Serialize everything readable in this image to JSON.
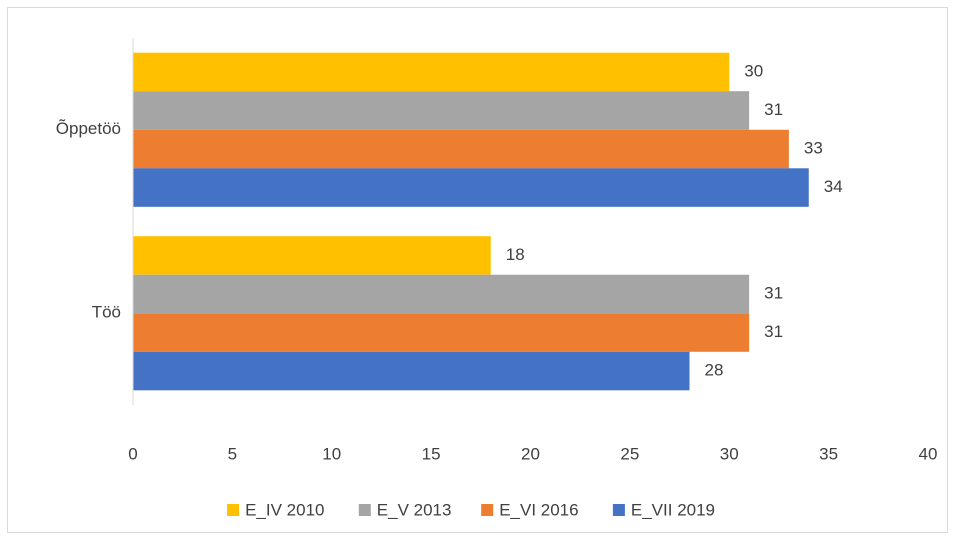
{
  "chart_data": {
    "type": "hbar",
    "categories": [
      "Õppetöö",
      "Töö"
    ],
    "series": [
      {
        "name": "E_IV 2010",
        "color": "#ffc000",
        "values": [
          30,
          18
        ]
      },
      {
        "name": "E_V 2013",
        "color": "#a5a5a5",
        "values": [
          31,
          31
        ]
      },
      {
        "name": "E_VI 2016",
        "color": "#ed7d31",
        "values": [
          33,
          31
        ]
      },
      {
        "name": "E_VII 2019",
        "color": "#4472c4",
        "values": [
          34,
          28
        ]
      }
    ],
    "xlim": [
      0,
      40
    ],
    "xticks": [
      0,
      5,
      10,
      15,
      20,
      25,
      30,
      35,
      40
    ],
    "legend": "bottom"
  }
}
